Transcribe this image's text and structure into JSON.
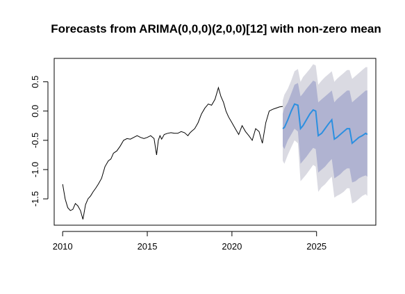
{
  "chart_data": {
    "type": "line",
    "title": "Forecasts from ARIMA(0,0,0)(2,0,0)[12] with non-zero mean",
    "xlabel": "",
    "ylabel": "",
    "xlim": [
      2009.5,
      2028.5
    ],
    "ylim": [
      -1.95,
      0.9
    ],
    "x_ticks": [
      2010,
      2015,
      2020,
      2025
    ],
    "y_ticks": [
      -1.5,
      -1.0,
      -0.5,
      0.0,
      0.5
    ],
    "x_tick_labels": [
      "2010",
      "2015",
      "2020",
      "2025"
    ],
    "y_tick_labels": [
      "-1.5",
      "-1.0",
      "-0.5",
      "0.0",
      "0.5"
    ],
    "grid": false,
    "colors": {
      "history": "#000000",
      "forecast": "#2b8fe0",
      "band80": "#b0b3d1",
      "band95": "#dadae2"
    },
    "history": {
      "x": [
        2010.0,
        2010.15,
        2010.3,
        2010.45,
        2010.6,
        2010.75,
        2010.9,
        2011.05,
        2011.2,
        2011.35,
        2011.5,
        2011.65,
        2011.8,
        2011.95,
        2012.1,
        2012.3,
        2012.5,
        2012.7,
        2012.85,
        2013.0,
        2013.2,
        2013.4,
        2013.6,
        2013.8,
        2014.0,
        2014.2,
        2014.4,
        2014.6,
        2014.8,
        2015.0,
        2015.2,
        2015.4,
        2015.55,
        2015.65,
        2015.75,
        2015.85,
        2016.0,
        2016.2,
        2016.4,
        2016.6,
        2016.8,
        2017.0,
        2017.2,
        2017.4,
        2017.5,
        2017.6,
        2017.8,
        2018.0,
        2018.2,
        2018.4,
        2018.6,
        2018.8,
        2019.0,
        2019.2,
        2019.35,
        2019.5,
        2019.65,
        2019.8,
        2020.0,
        2020.2,
        2020.4,
        2020.6,
        2020.8,
        2021.0,
        2021.2,
        2021.4,
        2021.6,
        2021.8,
        2022.0,
        2022.2,
        2022.4,
        2022.6,
        2022.8,
        2023.0
      ],
      "y": [
        -1.25,
        -1.5,
        -1.65,
        -1.7,
        -1.68,
        -1.58,
        -1.62,
        -1.7,
        -1.85,
        -1.6,
        -1.5,
        -1.45,
        -1.38,
        -1.32,
        -1.25,
        -1.15,
        -0.95,
        -0.85,
        -0.82,
        -0.72,
        -0.68,
        -0.6,
        -0.5,
        -0.47,
        -0.48,
        -0.45,
        -0.42,
        -0.45,
        -0.47,
        -0.45,
        -0.42,
        -0.47,
        -0.75,
        -0.5,
        -0.42,
        -0.48,
        -0.4,
        -0.38,
        -0.37,
        -0.38,
        -0.38,
        -0.35,
        -0.37,
        -0.42,
        -0.38,
        -0.35,
        -0.3,
        -0.2,
        -0.05,
        0.05,
        0.12,
        0.1,
        0.2,
        0.4,
        0.25,
        0.15,
        0.0,
        -0.1,
        -0.2,
        -0.3,
        -0.4,
        -0.25,
        -0.35,
        -0.42,
        -0.5,
        -0.3,
        -0.35,
        -0.55,
        -0.2,
        0.0,
        0.03,
        0.05,
        0.07,
        0.08
      ]
    },
    "forecast": {
      "x": [
        2023.0,
        2023.1,
        2023.3,
        2023.5,
        2023.7,
        2023.9,
        2024.05,
        2024.2,
        2024.4,
        2024.6,
        2024.8,
        2024.95,
        2025.1,
        2025.3,
        2025.5,
        2025.7,
        2025.9,
        2026.05,
        2026.2,
        2026.4,
        2026.6,
        2026.8,
        2026.95,
        2027.1,
        2027.3,
        2027.5,
        2027.7,
        2027.9,
        2028.0
      ],
      "mean": [
        -0.3,
        -0.28,
        -0.15,
        0.0,
        0.12,
        0.1,
        -0.3,
        -0.25,
        -0.15,
        -0.05,
        0.02,
        0.0,
        -0.42,
        -0.38,
        -0.3,
        -0.22,
        -0.15,
        -0.48,
        -0.45,
        -0.4,
        -0.35,
        -0.3,
        -0.3,
        -0.55,
        -0.5,
        -0.45,
        -0.42,
        -0.38,
        -0.4
      ],
      "lower80": [
        -0.6,
        -0.65,
        -0.5,
        -0.4,
        -0.3,
        -0.35,
        -0.9,
        -0.85,
        -0.78,
        -0.7,
        -0.63,
        -0.65,
        -1.05,
        -1.0,
        -0.95,
        -0.88,
        -0.82,
        -1.15,
        -1.12,
        -1.08,
        -1.02,
        -0.98,
        -0.98,
        -1.22,
        -1.2,
        -1.15,
        -1.12,
        -1.1,
        -1.12
      ],
      "upper80": [
        -0.05,
        0.05,
        0.15,
        0.3,
        0.45,
        0.48,
        0.25,
        0.3,
        0.38,
        0.45,
        0.52,
        0.5,
        0.15,
        0.2,
        0.25,
        0.3,
        0.35,
        0.15,
        0.2,
        0.25,
        0.3,
        0.35,
        0.35,
        0.15,
        0.2,
        0.25,
        0.3,
        0.35,
        0.35
      ],
      "lower95": [
        -0.85,
        -0.9,
        -0.75,
        -0.62,
        -0.5,
        -0.55,
        -1.2,
        -1.15,
        -1.08,
        -1.0,
        -0.92,
        -0.95,
        -1.38,
        -1.3,
        -1.25,
        -1.18,
        -1.12,
        -1.48,
        -1.45,
        -1.42,
        -1.38,
        -1.32,
        -1.32,
        -1.58,
        -1.55,
        -1.5,
        -1.45,
        -1.42,
        -1.45
      ],
      "upper95": [
        0.18,
        0.28,
        0.38,
        0.52,
        0.68,
        0.72,
        0.5,
        0.58,
        0.65,
        0.72,
        0.8,
        0.78,
        0.45,
        0.52,
        0.58,
        0.63,
        0.68,
        0.5,
        0.55,
        0.6,
        0.65,
        0.7,
        0.7,
        0.55,
        0.6,
        0.65,
        0.7,
        0.75,
        0.75
      ]
    }
  }
}
